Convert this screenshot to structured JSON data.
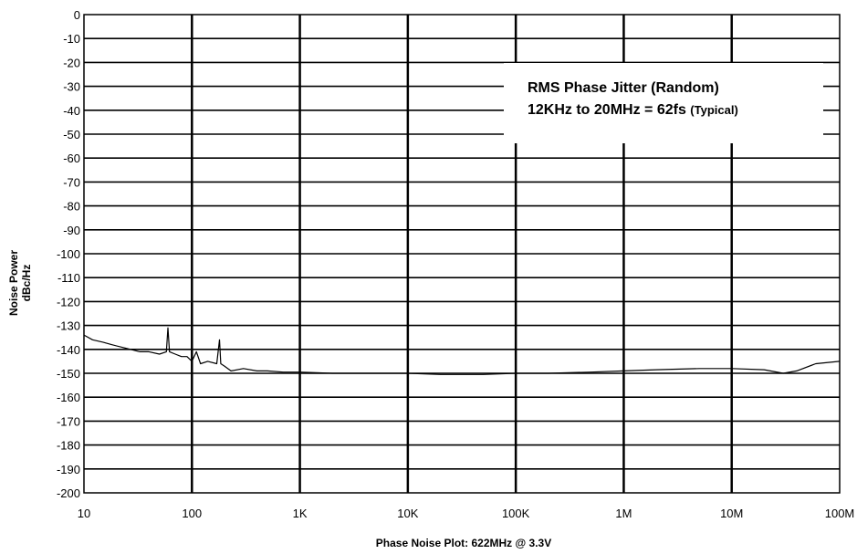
{
  "chart_data": {
    "type": "line",
    "title": "Phase Noise Plot: 622MHz @ 3.3V",
    "ylabel_line1": "Noise Power",
    "ylabel_line2": "dBc/Hz",
    "xscale": "log",
    "xlim": [
      10,
      100000000
    ],
    "ylim": [
      -200,
      0
    ],
    "grid": true,
    "x_ticks": [
      {
        "value": 10,
        "label": "10"
      },
      {
        "value": 100,
        "label": "100"
      },
      {
        "value": 1000,
        "label": "1K"
      },
      {
        "value": 10000,
        "label": "10K"
      },
      {
        "value": 100000,
        "label": "100K"
      },
      {
        "value": 1000000,
        "label": "1M"
      },
      {
        "value": 10000000,
        "label": "10M"
      },
      {
        "value": 100000000,
        "label": "100M"
      }
    ],
    "y_ticks": [
      0,
      -10,
      -20,
      -30,
      -40,
      -50,
      -60,
      -70,
      -80,
      -90,
      -100,
      -110,
      -120,
      -130,
      -140,
      -150,
      -160,
      -170,
      -180,
      -190,
      -200
    ],
    "annotation": {
      "line1": "RMS Phase Jitter (Random)",
      "line2_main": "12KHz to 20MHz = 62fs",
      "line2_note": "(Typical)"
    },
    "series": [
      {
        "color": "#000000",
        "x": [
          10,
          12,
          15,
          18,
          22,
          27,
          33,
          40,
          50,
          58,
          60,
          62,
          70,
          80,
          90,
          100,
          110,
          120,
          140,
          170,
          180,
          185,
          200,
          230,
          300,
          400,
          500,
          700,
          1000,
          2000,
          5000,
          10000,
          20000,
          50000,
          100000,
          200000,
          500000,
          1000000,
          2000000,
          5000000,
          10000000,
          20000000,
          30000000,
          40000000,
          60000000,
          100000000
        ],
        "y": [
          -134,
          -136,
          -137,
          -138,
          -139,
          -140,
          -141,
          -141,
          -142,
          -141,
          -131,
          -141,
          -142,
          -143,
          -143,
          -145,
          -141,
          -146,
          -145,
          -146,
          -136,
          -146,
          -147,
          -149,
          -148,
          -149,
          -149,
          -149.5,
          -149.5,
          -150,
          -150,
          -150,
          -150.5,
          -150.5,
          -150,
          -150,
          -149.5,
          -149,
          -148.5,
          -148,
          -148,
          -148.5,
          -150,
          -149,
          -146,
          -145
        ]
      }
    ]
  }
}
